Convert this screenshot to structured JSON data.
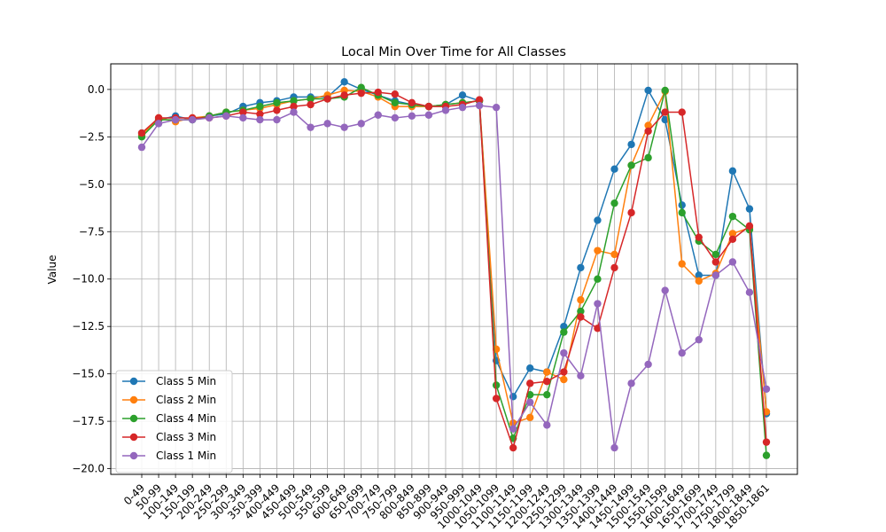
{
  "chart_data": {
    "type": "line",
    "title": "Local Min Over Time for All Classes",
    "xlabel": "",
    "ylabel": "Value",
    "ylim": [
      -20.3,
      1.35
    ],
    "yticks": [
      0.0,
      -2.5,
      -5.0,
      -7.5,
      -10.0,
      -12.5,
      -15.0,
      -17.5,
      -20.0
    ],
    "ytick_labels": [
      "0.0",
      "−2.5",
      "−5.0",
      "−7.5",
      "−10.0",
      "−12.5",
      "−15.0",
      "−17.5",
      "−20.0"
    ],
    "grid": true,
    "legend_position": "lower-left",
    "categories": [
      "0-49",
      "50-99",
      "100-149",
      "150-199",
      "200-249",
      "250-299",
      "300-349",
      "350-399",
      "400-449",
      "450-499",
      "500-549",
      "550-599",
      "600-649",
      "650-699",
      "700-749",
      "750-799",
      "800-849",
      "850-899",
      "900-949",
      "950-999",
      "1000-1049",
      "1050-1099",
      "1100-1149",
      "1150-1199",
      "1200-1249",
      "1250-1299",
      "1300-1349",
      "1350-1399",
      "1400-1449",
      "1450-1499",
      "1500-1549",
      "1550-1599",
      "1600-1649",
      "1650-1699",
      "1700-1749",
      "1750-1799",
      "1800-1849",
      "1850-1861"
    ],
    "series": [
      {
        "name": "Class 5 Min",
        "color": "#1f77b4",
        "values": [
          -2.3,
          -1.6,
          -1.4,
          -1.6,
          -1.4,
          -1.3,
          -0.9,
          -0.7,
          -0.6,
          -0.4,
          -0.4,
          -0.4,
          0.4,
          0.0,
          -0.3,
          -0.6,
          -0.8,
          -0.9,
          -0.8,
          -0.3,
          -0.6,
          -14.3,
          -16.2,
          -14.7,
          -14.9,
          -12.5,
          -9.4,
          -6.9,
          -4.2,
          -2.9,
          -0.05,
          -1.6,
          -6.1,
          -9.8,
          -9.8,
          -4.3,
          -6.3,
          -17.1
        ]
      },
      {
        "name": "Class 2 Min",
        "color": "#ff7f0e",
        "values": [
          -2.4,
          -1.5,
          -1.7,
          -1.5,
          -1.4,
          -1.2,
          -1.1,
          -1.0,
          -0.8,
          -0.6,
          -0.5,
          -0.3,
          -0.05,
          -0.1,
          -0.4,
          -0.9,
          -0.9,
          -0.9,
          -0.8,
          -0.7,
          -0.6,
          -13.7,
          -17.6,
          -17.3,
          -14.9,
          -15.3,
          -11.1,
          -8.5,
          -8.7,
          -4.0,
          -1.9,
          -0.1,
          -9.2,
          -10.1,
          -9.7,
          -7.6,
          -7.3,
          -17.0
        ]
      },
      {
        "name": "Class 4 Min",
        "color": "#2ca02c",
        "values": [
          -2.5,
          -1.6,
          -1.6,
          -1.6,
          -1.4,
          -1.2,
          -1.1,
          -0.9,
          -0.7,
          -0.6,
          -0.5,
          -0.5,
          -0.4,
          0.1,
          -0.3,
          -0.7,
          -0.8,
          -0.9,
          -0.8,
          -0.7,
          -0.6,
          -15.6,
          -18.4,
          -16.1,
          -16.1,
          -12.8,
          -11.7,
          -10.0,
          -6.0,
          -4.0,
          -3.6,
          -0.05,
          -6.5,
          -8.0,
          -8.7,
          -6.7,
          -7.4,
          -19.3
        ]
      },
      {
        "name": "Class 3 Min",
        "color": "#d62728",
        "values": [
          -2.3,
          -1.5,
          -1.5,
          -1.5,
          -1.5,
          -1.4,
          -1.2,
          -1.3,
          -1.1,
          -0.9,
          -0.8,
          -0.5,
          -0.3,
          -0.2,
          -0.15,
          -0.25,
          -0.7,
          -0.9,
          -0.9,
          -0.8,
          -0.55,
          -16.3,
          -18.9,
          -15.5,
          -15.4,
          -14.9,
          -12.0,
          -12.6,
          -9.4,
          -6.5,
          -2.2,
          -1.2,
          -1.2,
          -7.8,
          -9.1,
          -7.9,
          -7.2,
          -18.6
        ]
      },
      {
        "name": "Class 1 Min",
        "color": "#9467bd",
        "values": [
          -3.05,
          -1.8,
          -1.6,
          -1.6,
          -1.5,
          -1.4,
          -1.5,
          -1.6,
          -1.6,
          -1.2,
          -2.0,
          -1.8,
          -2.0,
          -1.8,
          -1.35,
          -1.5,
          -1.4,
          -1.35,
          -1.1,
          -0.95,
          -0.85,
          -0.95,
          -17.9,
          -16.5,
          -17.7,
          -13.9,
          -15.1,
          -11.3,
          -18.9,
          -15.5,
          -14.5,
          -10.6,
          -13.9,
          -13.2,
          -9.8,
          -9.1,
          -10.7,
          -15.8
        ]
      }
    ]
  }
}
